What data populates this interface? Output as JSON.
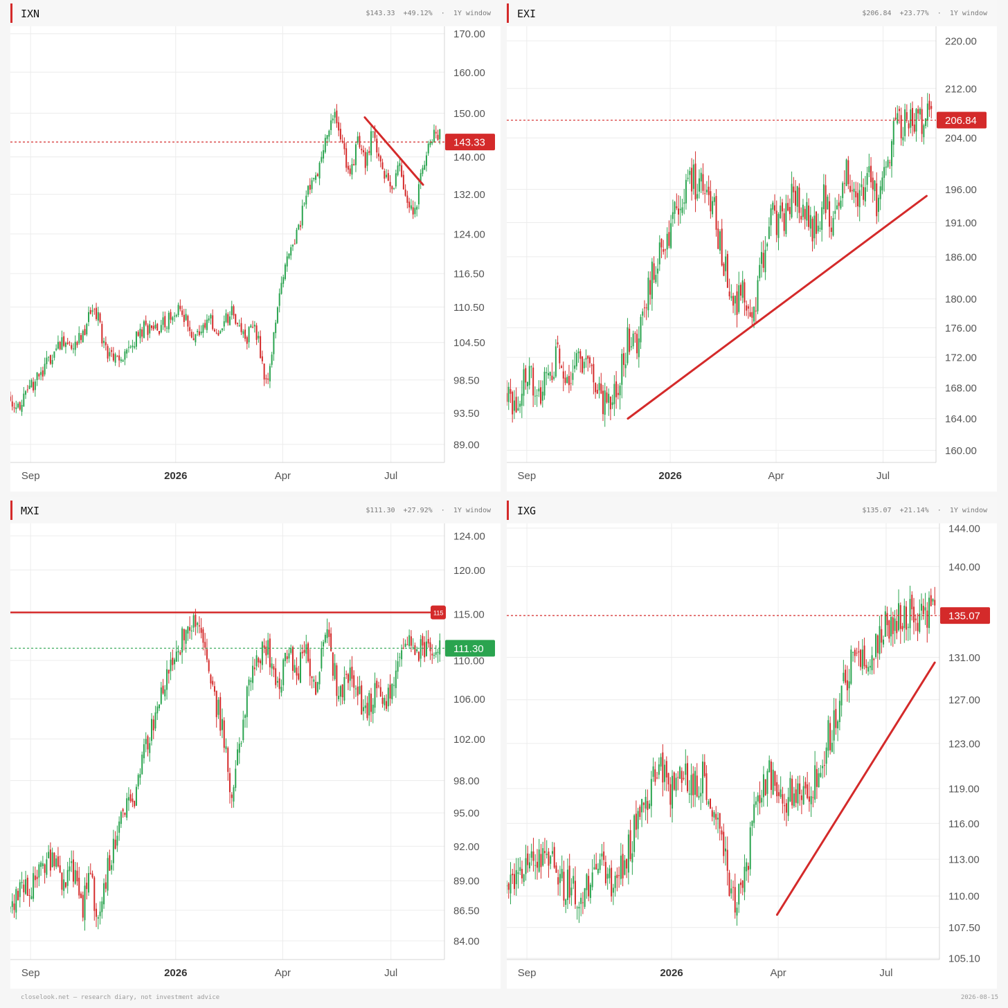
{
  "footer": {
    "left": "closelook.net — research diary, not investment advice",
    "right": "2026-08-15"
  },
  "colors": {
    "up": "#2aa44f",
    "down": "#d42a2a",
    "grid": "#ececec",
    "axis_text": "#555555"
  },
  "chart_data": [
    {
      "type": "candlestick",
      "symbol": "IXN",
      "header": {
        "price": "$143.33",
        "change": "+49.12%",
        "window": "1Y window"
      },
      "x_ticks": [
        "Sep",
        "2026",
        "Apr",
        "Jul"
      ],
      "y_ticks": [
        "170.00",
        "160.00",
        "150.00",
        "140.00",
        "132.00",
        "124.00",
        "116.50",
        "110.50",
        "104.50",
        "98.50",
        "93.50",
        "89.00"
      ],
      "ylim": [
        86.5,
        172
      ],
      "y_scale": "log",
      "last_price": {
        "value": 143.33,
        "label": "143.33",
        "color": "#d42a2a"
      },
      "anchors": [
        [
          0,
          96
        ],
        [
          5,
          94
        ],
        [
          10,
          97
        ],
        [
          18,
          100
        ],
        [
          25,
          105
        ],
        [
          30,
          103
        ],
        [
          38,
          106
        ],
        [
          44,
          111
        ],
        [
          50,
          103
        ],
        [
          56,
          101
        ],
        [
          64,
          104
        ],
        [
          70,
          107
        ],
        [
          75,
          106
        ],
        [
          82,
          108
        ],
        [
          90,
          110
        ],
        [
          96,
          104
        ],
        [
          104,
          109
        ],
        [
          110,
          106
        ],
        [
          116,
          110
        ],
        [
          123,
          105
        ],
        [
          128,
          107
        ],
        [
          131,
          103
        ],
        [
          134,
          98
        ],
        [
          138,
          105
        ],
        [
          142,
          115
        ],
        [
          146,
          120
        ],
        [
          152,
          127
        ],
        [
          158,
          135
        ],
        [
          164,
          140
        ],
        [
          168,
          150
        ],
        [
          172,
          147
        ],
        [
          178,
          135
        ],
        [
          182,
          144
        ],
        [
          186,
          138
        ],
        [
          190,
          146
        ],
        [
          196,
          136
        ],
        [
          200,
          134
        ],
        [
          204,
          138
        ],
        [
          208,
          131
        ],
        [
          212,
          128
        ],
        [
          214,
          134
        ],
        [
          218,
          140
        ],
        [
          222,
          145
        ]
      ],
      "trendline": {
        "from": [
          "2026-06-09",
          149.0
        ],
        "to": [
          "2026-07-28",
          134.0
        ]
      },
      "horizontal_line": null
    },
    {
      "type": "candlestick",
      "symbol": "EXI",
      "header": {
        "price": "$206.84",
        "change": "+23.77%",
        "window": "1Y window"
      },
      "x_ticks": [
        "Sep",
        "2026",
        "Apr",
        "Jul"
      ],
      "y_ticks": [
        "220.00",
        "212.00",
        "204.00",
        "196.00",
        "191.00",
        "186.00",
        "180.00",
        "176.00",
        "172.00",
        "168.00",
        "164.00",
        "160.00"
      ],
      "ylim": [
        158.5,
        222.5
      ],
      "y_scale": "log",
      "last_price": {
        "value": 206.84,
        "label": "206.84",
        "color": "#d42a2a"
      },
      "anchors": [
        [
          0,
          167
        ],
        [
          5,
          166
        ],
        [
          10,
          169
        ],
        [
          18,
          168
        ],
        [
          26,
          172
        ],
        [
          32,
          169
        ],
        [
          40,
          172
        ],
        [
          46,
          170
        ],
        [
          52,
          166
        ],
        [
          58,
          168
        ],
        [
          64,
          174
        ],
        [
          70,
          175
        ],
        [
          74,
          180
        ],
        [
          80,
          186
        ],
        [
          86,
          190
        ],
        [
          92,
          194
        ],
        [
          96,
          199
        ],
        [
          100,
          197
        ],
        [
          104,
          198
        ],
        [
          110,
          193
        ],
        [
          114,
          186
        ],
        [
          120,
          179
        ],
        [
          126,
          181
        ],
        [
          130,
          177
        ],
        [
          136,
          186
        ],
        [
          140,
          192
        ],
        [
          146,
          191
        ],
        [
          152,
          196
        ],
        [
          158,
          192
        ],
        [
          164,
          190
        ],
        [
          168,
          195
        ],
        [
          172,
          190
        ],
        [
          176,
          196
        ],
        [
          180,
          199
        ],
        [
          186,
          196
        ],
        [
          192,
          198
        ],
        [
          196,
          194
        ],
        [
          200,
          197
        ],
        [
          206,
          206
        ],
        [
          211,
          206.5
        ],
        [
          214,
          207
        ]
      ],
      "trendline": {
        "from": [
          "2025-11-26",
          164.0
        ],
        "to": [
          "2026-08-07",
          195.0
        ]
      },
      "horizontal_line": null
    },
    {
      "type": "candlestick",
      "symbol": "MXI",
      "header": {
        "price": "$111.30",
        "change": "+27.92%",
        "window": "1Y window"
      },
      "x_ticks": [
        "Sep",
        "2026",
        "Apr",
        "Jul"
      ],
      "y_ticks": [
        "124.00",
        "120.00",
        "115.00",
        "110.00",
        "106.00",
        "102.00",
        "98.00",
        "95.00",
        "92.00",
        "89.00",
        "86.50",
        "84.00"
      ],
      "ylim": [
        82.5,
        125.5
      ],
      "y_scale": "log",
      "last_price": {
        "value": 111.3,
        "label": "111.30",
        "color": "#2aa44f"
      },
      "anchors": [
        [
          0,
          87
        ],
        [
          6,
          88
        ],
        [
          12,
          89
        ],
        [
          20,
          91
        ],
        [
          28,
          89
        ],
        [
          32,
          90
        ],
        [
          38,
          87
        ],
        [
          42,
          89
        ],
        [
          46,
          86
        ],
        [
          52,
          91
        ],
        [
          58,
          94
        ],
        [
          66,
          97
        ],
        [
          72,
          102
        ],
        [
          78,
          106
        ],
        [
          84,
          109
        ],
        [
          90,
          112
        ],
        [
          98,
          115
        ],
        [
          104,
          108
        ],
        [
          110,
          104
        ],
        [
          116,
          97
        ],
        [
          122,
          104
        ],
        [
          128,
          110
        ],
        [
          134,
          112
        ],
        [
          140,
          107
        ],
        [
          146,
          112
        ],
        [
          150,
          108
        ],
        [
          154,
          112
        ],
        [
          160,
          107
        ],
        [
          166,
          113
        ],
        [
          172,
          106
        ],
        [
          178,
          108
        ],
        [
          186,
          105
        ],
        [
          192,
          107
        ],
        [
          196,
          105
        ],
        [
          200,
          107
        ],
        [
          206,
          112
        ],
        [
          210,
          111.3
        ]
      ],
      "trendline": null,
      "horizontal_line": {
        "value": 115.2,
        "label": "115"
      }
    },
    {
      "type": "candlestick",
      "symbol": "IXG",
      "header": {
        "price": "$135.07",
        "change": "+21.14%",
        "window": "1Y window"
      },
      "x_ticks": [
        "Sep",
        "2026",
        "Apr",
        "Jul"
      ],
      "y_ticks": [
        "144.00",
        "140.00",
        "131.00",
        "127.00",
        "123.00",
        "119.00",
        "116.00",
        "113.00",
        "110.00",
        "107.50",
        "105.10"
      ],
      "ylim": [
        105.0,
        144.5
      ],
      "y_scale": "log",
      "last_price": {
        "value": 135.07,
        "label": "135.07",
        "color": "#d42a2a"
      },
      "anchors": [
        [
          0,
          111
        ],
        [
          8,
          112
        ],
        [
          16,
          113
        ],
        [
          24,
          113
        ],
        [
          30,
          111
        ],
        [
          38,
          110
        ],
        [
          44,
          111
        ],
        [
          50,
          113
        ],
        [
          56,
          110
        ],
        [
          62,
          113
        ],
        [
          68,
          116
        ],
        [
          74,
          118
        ],
        [
          80,
          121
        ],
        [
          86,
          119
        ],
        [
          92,
          121
        ],
        [
          98,
          119
        ],
        [
          104,
          120
        ],
        [
          110,
          117
        ],
        [
          116,
          112
        ],
        [
          120,
          109
        ],
        [
          126,
          112
        ],
        [
          132,
          119
        ],
        [
          138,
          120
        ],
        [
          146,
          118
        ],
        [
          154,
          119
        ],
        [
          160,
          119
        ],
        [
          168,
          123
        ],
        [
          174,
          126
        ],
        [
          180,
          130
        ],
        [
          186,
          131
        ],
        [
          192,
          132
        ],
        [
          198,
          134
        ],
        [
          204,
          135
        ],
        [
          209,
          135.1
        ]
      ],
      "trendline": {
        "from": [
          "2026-03-31",
          108.5
        ],
        "to": [
          "2026-08-11",
          130.5
        ]
      },
      "horizontal_line": null
    }
  ]
}
